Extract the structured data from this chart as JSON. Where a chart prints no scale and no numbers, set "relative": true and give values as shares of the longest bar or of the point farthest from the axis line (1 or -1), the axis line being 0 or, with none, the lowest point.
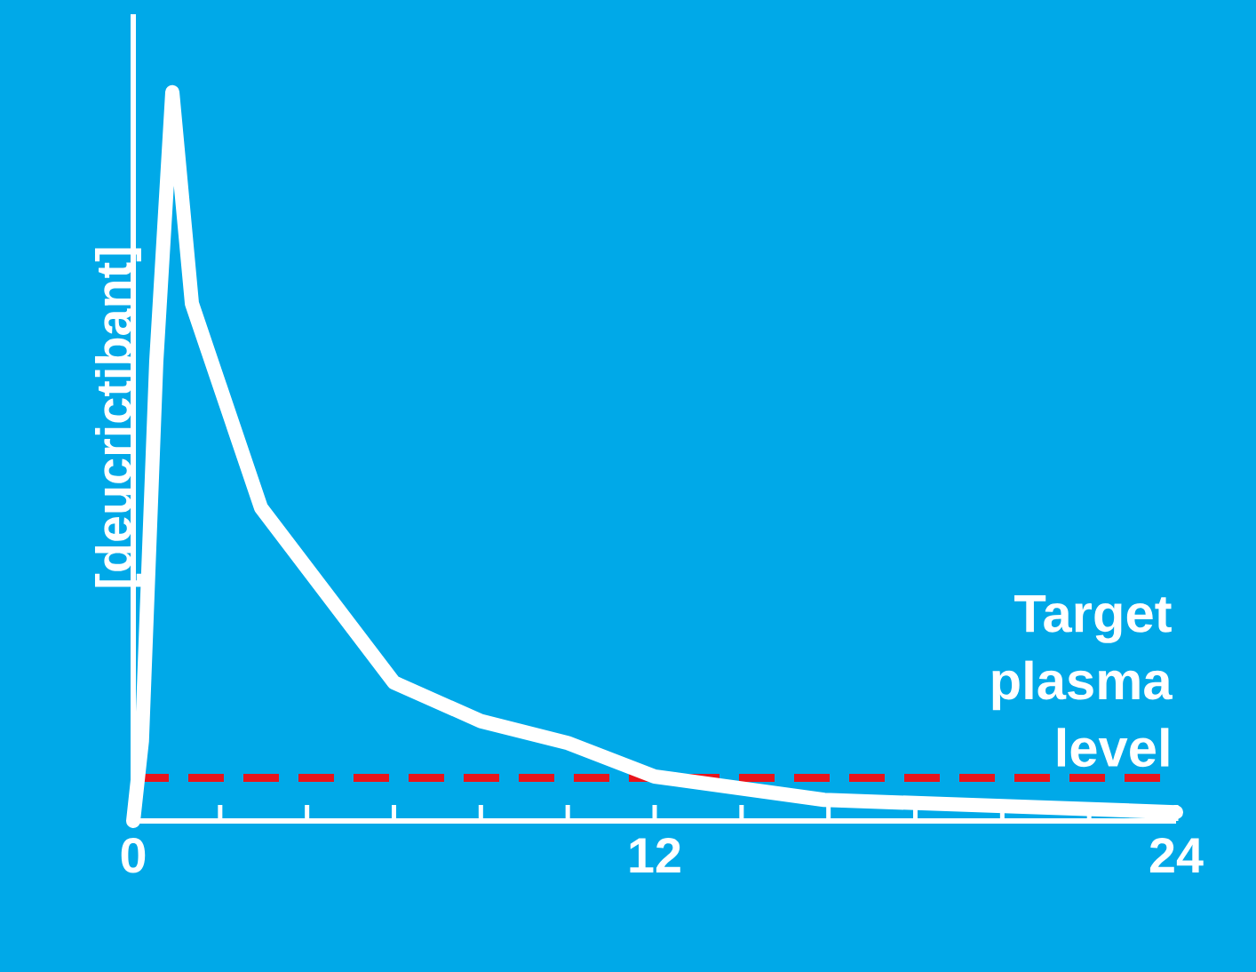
{
  "chart_data": {
    "type": "line",
    "ylabel": "[deucrictibant]",
    "relative": true,
    "tick_labels": "x",
    "xlim": [
      0,
      24
    ],
    "xticks": [
      0,
      {
        "value": 2,
        "label": null
      },
      {
        "value": 4,
        "label": null
      },
      {
        "value": 6,
        "label": null
      },
      {
        "value": 8,
        "label": null
      },
      {
        "value": 10,
        "label": null
      },
      12,
      {
        "value": 14,
        "label": null
      },
      {
        "value": 16,
        "label": null
      },
      {
        "value": 18,
        "label": null
      },
      {
        "value": 20,
        "label": null
      },
      {
        "value": 22,
        "label": null
      },
      24
    ],
    "x": [
      0,
      0.2,
      0.53,
      0.9,
      1.35,
      2.94,
      6.0,
      8.0,
      10.0,
      12.0,
      15.9,
      24
    ],
    "series": [
      {
        "color": "#ffffff",
        "values": [
          0,
          0.11,
          0.63,
          1,
          0.71,
          0.43,
          0.19,
          0.137,
          0.107,
          0.061,
          0.029,
          0.012
        ]
      }
    ],
    "ref_lines": [
      {
        "axis": "y",
        "value": 0.059,
        "label": "Target plasma level",
        "color": "#e8141b",
        "line_style": "dashed"
      }
    ]
  }
}
